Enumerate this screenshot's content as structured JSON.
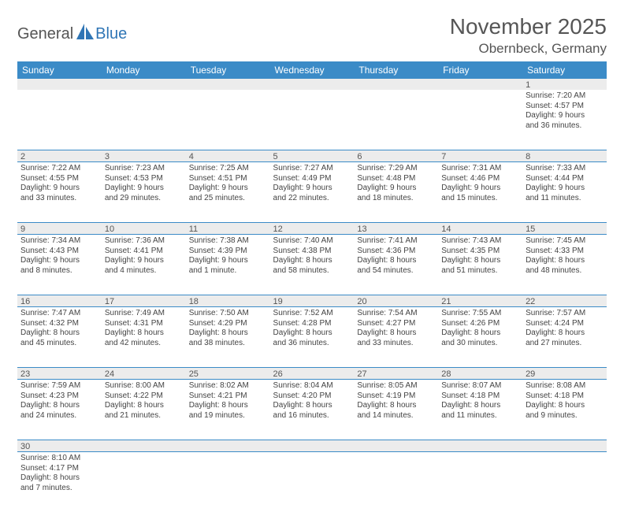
{
  "logo": {
    "word1": "General",
    "word2": "Blue"
  },
  "header": {
    "month": "November 2025",
    "location": "Obernbeck, Germany"
  },
  "colors": {
    "header_blue": "#3b8bc7",
    "row_bg": "#ececec",
    "body_text": "#444444",
    "title_text": "#565656",
    "logo_blue": "#2f75b5"
  },
  "weekdays": [
    "Sunday",
    "Monday",
    "Tuesday",
    "Wednesday",
    "Thursday",
    "Friday",
    "Saturday"
  ],
  "grid": [
    [
      null,
      null,
      null,
      null,
      null,
      null,
      {
        "n": "1",
        "sr": "Sunrise: 7:20 AM",
        "ss": "Sunset: 4:57 PM",
        "d1": "Daylight: 9 hours",
        "d2": "and 36 minutes."
      }
    ],
    [
      {
        "n": "2",
        "sr": "Sunrise: 7:22 AM",
        "ss": "Sunset: 4:55 PM",
        "d1": "Daylight: 9 hours",
        "d2": "and 33 minutes."
      },
      {
        "n": "3",
        "sr": "Sunrise: 7:23 AM",
        "ss": "Sunset: 4:53 PM",
        "d1": "Daylight: 9 hours",
        "d2": "and 29 minutes."
      },
      {
        "n": "4",
        "sr": "Sunrise: 7:25 AM",
        "ss": "Sunset: 4:51 PM",
        "d1": "Daylight: 9 hours",
        "d2": "and 25 minutes."
      },
      {
        "n": "5",
        "sr": "Sunrise: 7:27 AM",
        "ss": "Sunset: 4:49 PM",
        "d1": "Daylight: 9 hours",
        "d2": "and 22 minutes."
      },
      {
        "n": "6",
        "sr": "Sunrise: 7:29 AM",
        "ss": "Sunset: 4:48 PM",
        "d1": "Daylight: 9 hours",
        "d2": "and 18 minutes."
      },
      {
        "n": "7",
        "sr": "Sunrise: 7:31 AM",
        "ss": "Sunset: 4:46 PM",
        "d1": "Daylight: 9 hours",
        "d2": "and 15 minutes."
      },
      {
        "n": "8",
        "sr": "Sunrise: 7:33 AM",
        "ss": "Sunset: 4:44 PM",
        "d1": "Daylight: 9 hours",
        "d2": "and 11 minutes."
      }
    ],
    [
      {
        "n": "9",
        "sr": "Sunrise: 7:34 AM",
        "ss": "Sunset: 4:43 PM",
        "d1": "Daylight: 9 hours",
        "d2": "and 8 minutes."
      },
      {
        "n": "10",
        "sr": "Sunrise: 7:36 AM",
        "ss": "Sunset: 4:41 PM",
        "d1": "Daylight: 9 hours",
        "d2": "and 4 minutes."
      },
      {
        "n": "11",
        "sr": "Sunrise: 7:38 AM",
        "ss": "Sunset: 4:39 PM",
        "d1": "Daylight: 9 hours",
        "d2": "and 1 minute."
      },
      {
        "n": "12",
        "sr": "Sunrise: 7:40 AM",
        "ss": "Sunset: 4:38 PM",
        "d1": "Daylight: 8 hours",
        "d2": "and 58 minutes."
      },
      {
        "n": "13",
        "sr": "Sunrise: 7:41 AM",
        "ss": "Sunset: 4:36 PM",
        "d1": "Daylight: 8 hours",
        "d2": "and 54 minutes."
      },
      {
        "n": "14",
        "sr": "Sunrise: 7:43 AM",
        "ss": "Sunset: 4:35 PM",
        "d1": "Daylight: 8 hours",
        "d2": "and 51 minutes."
      },
      {
        "n": "15",
        "sr": "Sunrise: 7:45 AM",
        "ss": "Sunset: 4:33 PM",
        "d1": "Daylight: 8 hours",
        "d2": "and 48 minutes."
      }
    ],
    [
      {
        "n": "16",
        "sr": "Sunrise: 7:47 AM",
        "ss": "Sunset: 4:32 PM",
        "d1": "Daylight: 8 hours",
        "d2": "and 45 minutes."
      },
      {
        "n": "17",
        "sr": "Sunrise: 7:49 AM",
        "ss": "Sunset: 4:31 PM",
        "d1": "Daylight: 8 hours",
        "d2": "and 42 minutes."
      },
      {
        "n": "18",
        "sr": "Sunrise: 7:50 AM",
        "ss": "Sunset: 4:29 PM",
        "d1": "Daylight: 8 hours",
        "d2": "and 38 minutes."
      },
      {
        "n": "19",
        "sr": "Sunrise: 7:52 AM",
        "ss": "Sunset: 4:28 PM",
        "d1": "Daylight: 8 hours",
        "d2": "and 36 minutes."
      },
      {
        "n": "20",
        "sr": "Sunrise: 7:54 AM",
        "ss": "Sunset: 4:27 PM",
        "d1": "Daylight: 8 hours",
        "d2": "and 33 minutes."
      },
      {
        "n": "21",
        "sr": "Sunrise: 7:55 AM",
        "ss": "Sunset: 4:26 PM",
        "d1": "Daylight: 8 hours",
        "d2": "and 30 minutes."
      },
      {
        "n": "22",
        "sr": "Sunrise: 7:57 AM",
        "ss": "Sunset: 4:24 PM",
        "d1": "Daylight: 8 hours",
        "d2": "and 27 minutes."
      }
    ],
    [
      {
        "n": "23",
        "sr": "Sunrise: 7:59 AM",
        "ss": "Sunset: 4:23 PM",
        "d1": "Daylight: 8 hours",
        "d2": "and 24 minutes."
      },
      {
        "n": "24",
        "sr": "Sunrise: 8:00 AM",
        "ss": "Sunset: 4:22 PM",
        "d1": "Daylight: 8 hours",
        "d2": "and 21 minutes."
      },
      {
        "n": "25",
        "sr": "Sunrise: 8:02 AM",
        "ss": "Sunset: 4:21 PM",
        "d1": "Daylight: 8 hours",
        "d2": "and 19 minutes."
      },
      {
        "n": "26",
        "sr": "Sunrise: 8:04 AM",
        "ss": "Sunset: 4:20 PM",
        "d1": "Daylight: 8 hours",
        "d2": "and 16 minutes."
      },
      {
        "n": "27",
        "sr": "Sunrise: 8:05 AM",
        "ss": "Sunset: 4:19 PM",
        "d1": "Daylight: 8 hours",
        "d2": "and 14 minutes."
      },
      {
        "n": "28",
        "sr": "Sunrise: 8:07 AM",
        "ss": "Sunset: 4:18 PM",
        "d1": "Daylight: 8 hours",
        "d2": "and 11 minutes."
      },
      {
        "n": "29",
        "sr": "Sunrise: 8:08 AM",
        "ss": "Sunset: 4:18 PM",
        "d1": "Daylight: 8 hours",
        "d2": "and 9 minutes."
      }
    ],
    [
      {
        "n": "30",
        "sr": "Sunrise: 8:10 AM",
        "ss": "Sunset: 4:17 PM",
        "d1": "Daylight: 8 hours",
        "d2": "and 7 minutes."
      },
      null,
      null,
      null,
      null,
      null,
      null
    ]
  ]
}
